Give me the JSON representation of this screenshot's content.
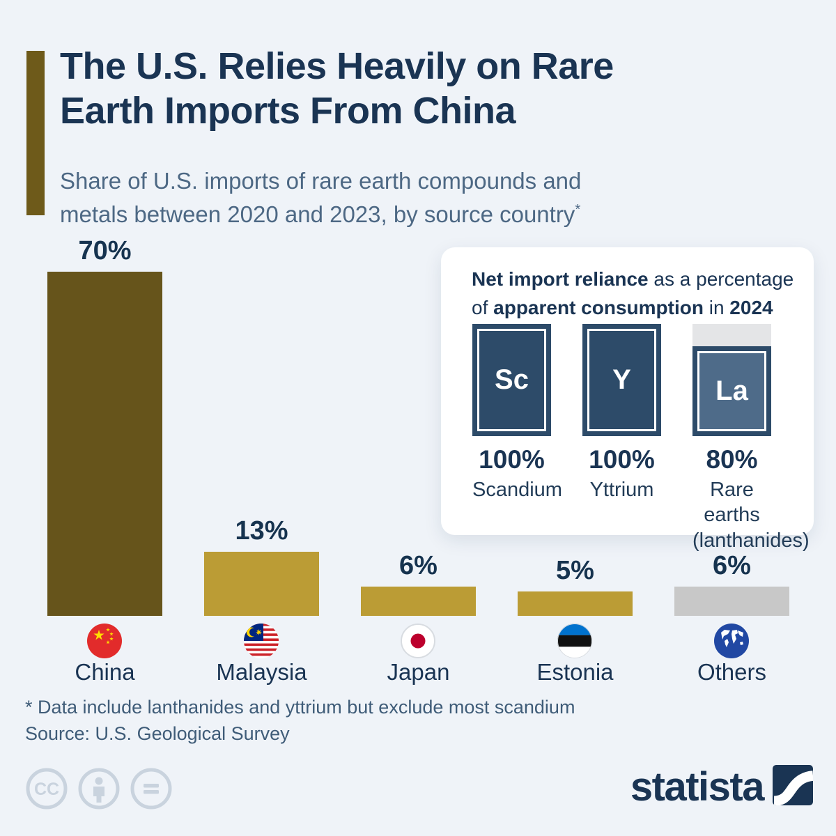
{
  "header": {
    "title_line1": "The U.S. Relies Heavily on Rare",
    "title_line2": "Earth Imports From China",
    "subtitle_line1": "Share of U.S. imports of rare earth compounds and",
    "subtitle_line2": "metals between 2020 and 2023, by source country",
    "footnote_marker": "*"
  },
  "chart_data": {
    "type": "bar",
    "title": "Share of U.S. imports of rare earth compounds and metals between 2020 and 2023, by source country",
    "categories": [
      "China",
      "Malaysia",
      "Japan",
      "Estonia",
      "Others"
    ],
    "values": [
      70,
      13,
      6,
      5,
      6
    ],
    "unit": "%",
    "ylim": [
      0,
      75
    ],
    "grid": false,
    "value_label_position": "above-bar",
    "bars": [
      {
        "label": "China",
        "value": 70,
        "value_label": "70%",
        "color": "#66541b",
        "flag": "china-flag"
      },
      {
        "label": "Malaysia",
        "value": 13,
        "value_label": "13%",
        "color": "#bb9c35",
        "flag": "malaysia-flag"
      },
      {
        "label": "Japan",
        "value": 6,
        "value_label": "6%",
        "color": "#bb9c35",
        "flag": "japan-flag"
      },
      {
        "label": "Estonia",
        "value": 5,
        "value_label": "5%",
        "color": "#bb9c35",
        "flag": "estonia-flag"
      },
      {
        "label": "Others",
        "value": 6,
        "value_label": "6%",
        "color": "#c8c8c8",
        "flag": "world-flag"
      }
    ]
  },
  "inset": {
    "title": {
      "line1_bold": "Net import reliance",
      "line1_rest": " as a percentage",
      "line2_pre": "of ",
      "line2_bold": "apparent consumption",
      "line2_mid": " in ",
      "line2_bold2": "2024"
    },
    "tiles": [
      {
        "symbol": "Sc",
        "pct": 100,
        "pct_label": "100%",
        "name_line1": "Scandium",
        "name_line2": "",
        "frame_color": "#2d4b69",
        "fill_color": "#2d4b69",
        "remainder_color": "#e4e5e7"
      },
      {
        "symbol": "Y",
        "pct": 100,
        "pct_label": "100%",
        "name_line1": "Yttrium",
        "name_line2": "",
        "frame_color": "#2d4b69",
        "fill_color": "#2d4b69",
        "remainder_color": "#e4e5e7"
      },
      {
        "symbol": "La",
        "pct": 80,
        "pct_label": "80%",
        "name_line1": "Rare earths",
        "name_line2": "(lanthanides)",
        "frame_color": "#2d4b69",
        "fill_color": "#4e6b89",
        "remainder_color": "#e4e5e7"
      }
    ]
  },
  "footer": {
    "footnote": "* Data include lanthanides and yttrium but exclude most scandium",
    "source": "Source: U.S. Geological Survey"
  },
  "branding": {
    "logo_text": "statista",
    "license_icons": [
      "cc",
      "attribution",
      "no-derivatives"
    ]
  },
  "colors": {
    "background": "#eff3f8",
    "accent_bar": "#6e5a1a",
    "title": "#1a3453",
    "subtitle": "#4d6884",
    "bar_china": "#66541b",
    "bar_gold": "#bb9c35",
    "bar_gray": "#c8c8c8",
    "tile_navy": "#2d4b69",
    "tile_slate": "#4e6b89",
    "tile_remainder": "#e4e5e7",
    "card_bg": "#ffffff",
    "footnote_text": "#3f5c78",
    "license_icon": "#c9d3de"
  }
}
